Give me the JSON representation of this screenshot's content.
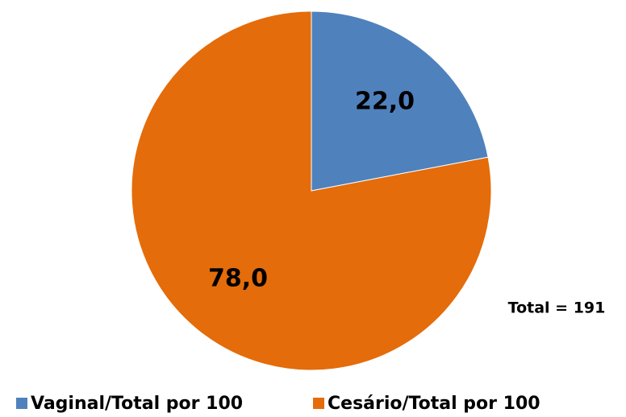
{
  "chart_data": {
    "type": "pie",
    "categories": [
      "Vaginal/Total por 100",
      "Cesário/Total por 100"
    ],
    "values": [
      22.0,
      78.0
    ],
    "value_labels": [
      "22,0",
      "78,0"
    ],
    "colors": [
      "#4f81bd",
      "#e46c0a"
    ],
    "annotations": [
      "Total = 191"
    ],
    "legend": "bottom"
  }
}
